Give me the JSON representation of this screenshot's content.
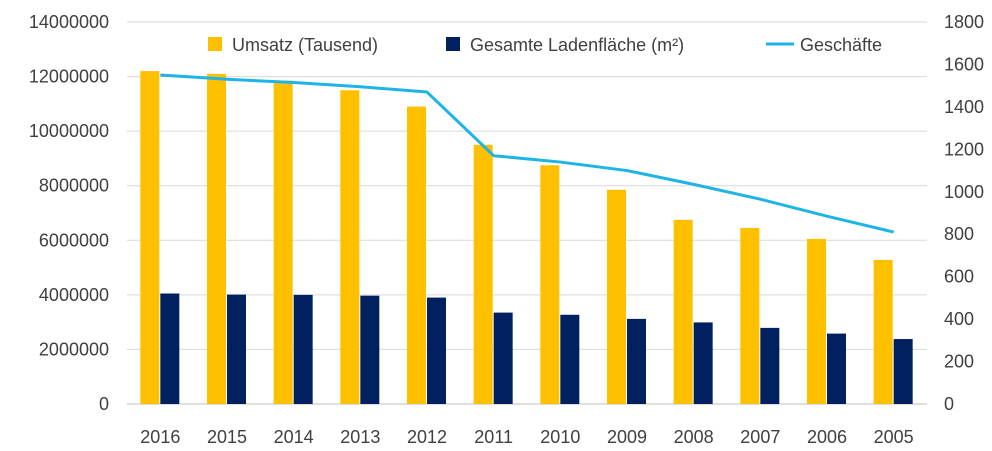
{
  "chart_data": {
    "type": "bar",
    "categories": [
      "2016",
      "2015",
      "2014",
      "2013",
      "2012",
      "2011",
      "2010",
      "2009",
      "2008",
      "2007",
      "2006",
      "2005"
    ],
    "series": [
      {
        "name": "Umsatz (Tausend)",
        "kind": "bar",
        "axis": "left",
        "color": "#FFC000",
        "values": [
          12200000,
          12100000,
          11850000,
          11500000,
          10900000,
          9500000,
          8750000,
          7850000,
          6750000,
          6450000,
          6050000,
          5280000
        ]
      },
      {
        "name": "Gesamte Ladenfläche (m²)",
        "kind": "bar",
        "axis": "left",
        "color": "#002060",
        "values": [
          4050000,
          4010000,
          4000000,
          3970000,
          3900000,
          3350000,
          3270000,
          3120000,
          2990000,
          2790000,
          2580000,
          2380000
        ]
      },
      {
        "name": "Geschäfte",
        "kind": "line",
        "axis": "right",
        "color": "#1EB4E6",
        "values": [
          1550,
          1530,
          1515,
          1495,
          1470,
          1170,
          1140,
          1100,
          1035,
          965,
          885,
          810
        ]
      }
    ],
    "ylim": [
      0,
      14000000
    ],
    "yticks": [
      "0",
      "2000000",
      "4000000",
      "6000000",
      "8000000",
      "10000000",
      "12000000",
      "14000000"
    ],
    "y2lim": [
      0,
      1800
    ],
    "y2ticks": [
      "0",
      "200",
      "400",
      "600",
      "800",
      "1000",
      "1200",
      "1400",
      "1600",
      "1800"
    ],
    "grid": true,
    "legend_position": "top"
  }
}
